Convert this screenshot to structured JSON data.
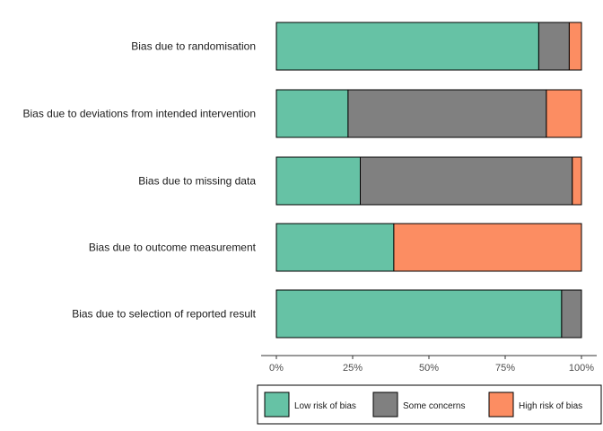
{
  "chart_data": {
    "type": "bar",
    "orientation": "horizontal",
    "stacked": true,
    "categories": [
      "Bias due to randomisation",
      "Bias due to deviations from intended intervention",
      "Bias due to missing data",
      "Bias due to outcome measurement",
      "Bias due to selection of reported result"
    ],
    "series": [
      {
        "name": "Low risk of bias",
        "color": "#66c2a5",
        "values": [
          86,
          23.5,
          27.5,
          38.5,
          93.5
        ]
      },
      {
        "name": "Some concerns",
        "color": "#808080",
        "values": [
          10,
          65,
          69.5,
          0,
          6.5
        ]
      },
      {
        "name": "High risk of bias",
        "color": "#fc8d62",
        "values": [
          4,
          11.5,
          3,
          61.5,
          0
        ]
      }
    ],
    "x_ticks": [
      "0%",
      "25%",
      "50%",
      "75%",
      "100%"
    ],
    "xlim": [
      0,
      100
    ],
    "grid": false,
    "legend_position": "bottom"
  }
}
